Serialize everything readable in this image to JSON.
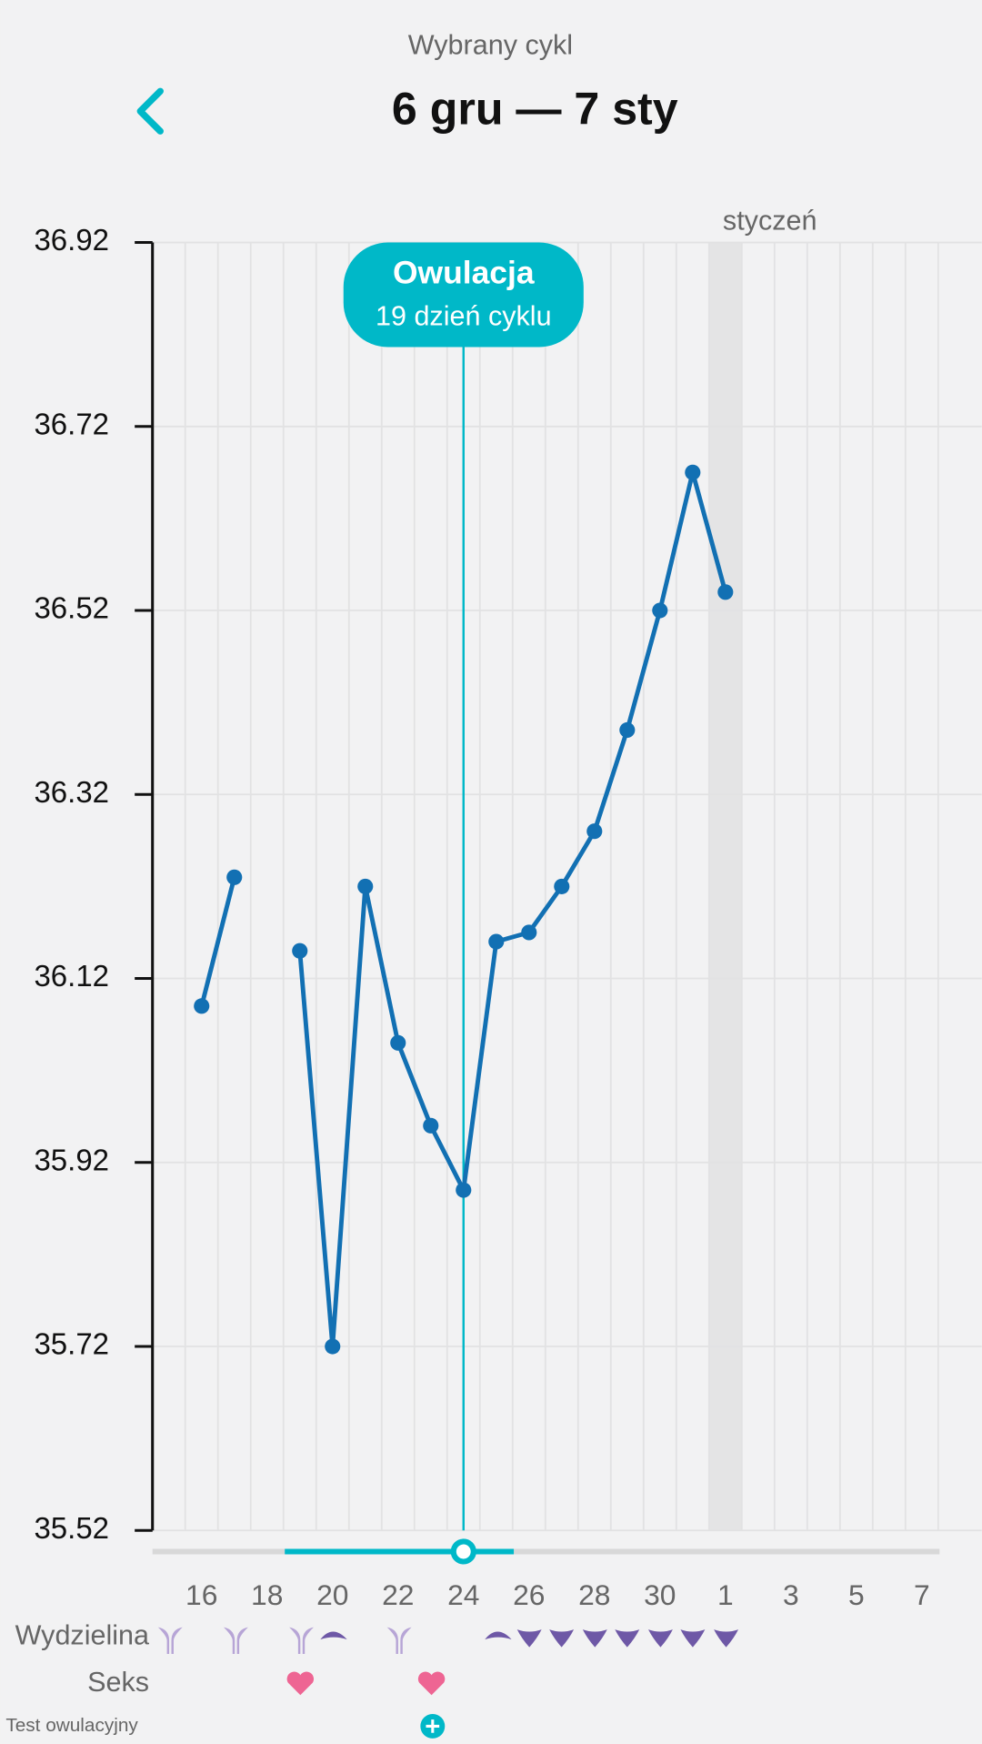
{
  "header": {
    "subtitle": "Wybrany cykl",
    "title": "6 gru — 7 sty"
  },
  "chart_data": {
    "type": "line",
    "categories": [
      null,
      "16",
      null,
      "18",
      null,
      "20",
      null,
      "22",
      null,
      "24",
      null,
      "26",
      null,
      "28",
      null,
      "30",
      null,
      "1",
      null,
      "3",
      null,
      "5",
      null,
      "7"
    ],
    "values": [
      null,
      36.09,
      36.23,
      null,
      36.15,
      35.72,
      36.22,
      36.05,
      35.96,
      35.89,
      36.16,
      36.17,
      36.22,
      36.28,
      36.39,
      36.52,
      36.67,
      36.54,
      null,
      null,
      null,
      null,
      null,
      null
    ],
    "color": "#1270b3",
    "ylim": [
      35.52,
      36.92
    ],
    "yticks": [
      36.92,
      36.72,
      36.52,
      36.32,
      36.12,
      35.92,
      35.72,
      35.52
    ],
    "grid": true,
    "month_label": {
      "label": "styczeń",
      "category": "1"
    },
    "ovulation": {
      "title": "Owulacja",
      "subtitle": "19 dzień cyklu",
      "category": "24",
      "color": "#00b8c8"
    }
  },
  "rows": {
    "discharge": "Wydzielina",
    "sex": "Seks",
    "ovulation_test": "Test owulacyjny"
  }
}
